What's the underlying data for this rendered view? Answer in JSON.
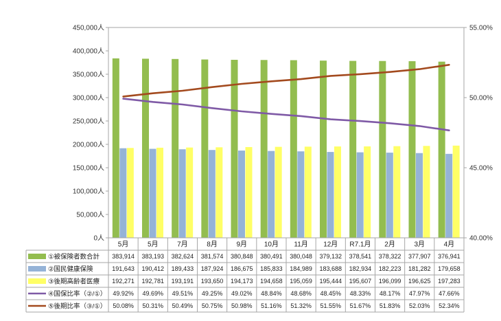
{
  "chart_data": {
    "type": "bar",
    "categories": [
      "5月",
      "5月",
      "7月",
      "8月",
      "9月",
      "10月",
      "11月",
      "12月",
      "R7.1月",
      "2月",
      "3月",
      "4月"
    ],
    "y_left": {
      "ylim": [
        0,
        450000
      ],
      "ticks": [
        "0人",
        "50,000人",
        "100,000人",
        "150,000人",
        "200,000人",
        "250,000人",
        "300,000人",
        "350,000人",
        "400,000人",
        "450,000人"
      ]
    },
    "y_right": {
      "ylim": [
        40,
        55
      ],
      "ticks": [
        "40.00%",
        "45.00%",
        "50.00%",
        "55.00%"
      ]
    },
    "series": [
      {
        "name": "①被保険者数合計",
        "kind": "bar",
        "color": "#93bd4f",
        "values": [
          383914,
          383193,
          382624,
          381574,
          380848,
          380491,
          380048,
          379132,
          378541,
          378322,
          377907,
          376941
        ],
        "labels": [
          "383,914",
          "383,193",
          "382,624",
          "381,574",
          "380,848",
          "380,491",
          "380,048",
          "379,132",
          "378,541",
          "378,322",
          "377,907",
          "376,941"
        ]
      },
      {
        "name": "②国民健康保険",
        "kind": "bar",
        "color": "#95b3d7",
        "values": [
          191643,
          190412,
          189433,
          187924,
          186675,
          185833,
          184989,
          183688,
          182934,
          182223,
          181282,
          179658
        ],
        "labels": [
          "191,643",
          "190,412",
          "189,433",
          "187,924",
          "186,675",
          "185,833",
          "184,989",
          "183,688",
          "182,934",
          "182,223",
          "181,282",
          "179,658"
        ]
      },
      {
        "name": "③後期高齢者医療",
        "kind": "bar",
        "color": "#ffff66",
        "values": [
          192271,
          192781,
          193191,
          193650,
          194173,
          194658,
          195059,
          195444,
          195607,
          196099,
          196625,
          197283
        ],
        "labels": [
          "192,271",
          "192,781",
          "193,191",
          "193,650",
          "194,173",
          "194,658",
          "195,059",
          "195,444",
          "195,607",
          "196,099",
          "196,625",
          "197,283"
        ]
      },
      {
        "name": "④国保比率（②/①）",
        "kind": "line",
        "axis": "right",
        "color": "#7f5aa6",
        "values": [
          49.92,
          49.69,
          49.51,
          49.25,
          49.02,
          48.84,
          48.68,
          48.45,
          48.33,
          48.17,
          47.97,
          47.66
        ],
        "labels": [
          "49.92%",
          "49.69%",
          "49.51%",
          "49.25%",
          "49.02%",
          "48.84%",
          "48.68%",
          "48.45%",
          "48.33%",
          "48.17%",
          "47.97%",
          "47.66%"
        ]
      },
      {
        "name": "⑤後期比率（③/①）",
        "kind": "line",
        "axis": "right",
        "color": "#a34a1e",
        "values": [
          50.08,
          50.31,
          50.49,
          50.75,
          50.98,
          51.16,
          51.32,
          51.55,
          51.67,
          51.83,
          52.03,
          52.34
        ],
        "labels": [
          "50.08%",
          "50.31%",
          "50.49%",
          "50.75%",
          "50.98%",
          "51.16%",
          "51.32%",
          "51.55%",
          "51.67%",
          "51.83%",
          "52.03%",
          "52.34%"
        ]
      }
    ],
    "grid": false,
    "legend": "data-table"
  }
}
